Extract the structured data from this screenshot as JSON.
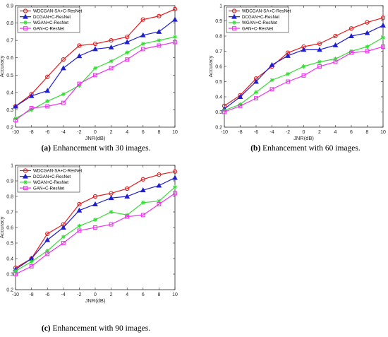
{
  "legend_order": [
    "WDCGAN-SA+C-ResNet",
    "DCGAN+C-ResNet",
    "WGAN+C-ResNet",
    "GAN+C-ResNet"
  ],
  "series_styles": [
    {
      "color": "#e41a1c",
      "marker": "circle"
    },
    {
      "color": "#1f1fd0",
      "marker": "triangle"
    },
    {
      "color": "#33dd33",
      "marker": "star"
    },
    {
      "color": "#ee33ee",
      "marker": "square"
    }
  ],
  "chart_data": [
    {
      "type": "line",
      "panel_letter": "(a)",
      "caption": "Enhancement with 30 images.",
      "xlabel": "JNR(dB)",
      "ylabel": "Accuracy",
      "x": [
        -10,
        -8,
        -6,
        -4,
        -2,
        0,
        2,
        4,
        6,
        8,
        10
      ],
      "xlim": [
        -10,
        10
      ],
      "ylim": [
        0.2,
        0.9
      ],
      "x_ticks": [
        "-10",
        "-8",
        "-6",
        "-4",
        "-2",
        "0",
        "2",
        "4",
        "6",
        "8",
        "10"
      ],
      "y_ticks": [
        "0.2",
        "0.3",
        "0.4",
        "0.5",
        "0.6",
        "0.7",
        "0.8",
        "0.9"
      ],
      "grid": false,
      "legend_position": "top-left",
      "series": [
        {
          "name": "WDCGAN-SA+C-ResNet",
          "values": [
            0.32,
            0.39,
            0.49,
            0.59,
            0.67,
            0.68,
            0.7,
            0.72,
            0.82,
            0.84,
            0.88
          ]
        },
        {
          "name": "DCGAN+C-ResNet",
          "values": [
            0.32,
            0.38,
            0.41,
            0.54,
            0.61,
            0.65,
            0.66,
            0.69,
            0.73,
            0.75,
            0.82
          ]
        },
        {
          "name": "WGAN+C-ResNet",
          "values": [
            0.25,
            0.3,
            0.35,
            0.39,
            0.44,
            0.54,
            0.58,
            0.63,
            0.68,
            0.7,
            0.72
          ]
        },
        {
          "name": "GAN+C-ResNet",
          "values": [
            0.24,
            0.31,
            0.32,
            0.34,
            0.45,
            0.5,
            0.54,
            0.59,
            0.65,
            0.67,
            0.69
          ]
        }
      ]
    },
    {
      "type": "line",
      "panel_letter": "(b)",
      "caption": "Enhancement with 60 images.",
      "xlabel": "JNR(dB)",
      "ylabel": "Accuracy",
      "x": [
        -10,
        -8,
        -6,
        -4,
        -2,
        0,
        2,
        4,
        6,
        8,
        10
      ],
      "xlim": [
        -10,
        10
      ],
      "ylim": [
        0.2,
        1.0
      ],
      "x_ticks": [
        "-10",
        "-8",
        "-6",
        "-4",
        "-2",
        "0",
        "2",
        "4",
        "6",
        "8",
        "10"
      ],
      "y_ticks": [
        "0.2",
        "0.3",
        "0.4",
        "0.5",
        "0.6",
        "0.7",
        "0.8",
        "0.9",
        "1"
      ],
      "grid": false,
      "legend_position": "top-left",
      "series": [
        {
          "name": "WDCGAN-SA+C-ResNet",
          "values": [
            0.34,
            0.41,
            0.52,
            0.6,
            0.69,
            0.73,
            0.75,
            0.8,
            0.85,
            0.89,
            0.92
          ]
        },
        {
          "name": "DCGAN+C-ResNet",
          "values": [
            0.32,
            0.4,
            0.5,
            0.61,
            0.67,
            0.71,
            0.71,
            0.74,
            0.8,
            0.82,
            0.87
          ]
        },
        {
          "name": "WGAN+C-ResNet",
          "values": [
            0.31,
            0.35,
            0.43,
            0.51,
            0.55,
            0.6,
            0.63,
            0.65,
            0.7,
            0.73,
            0.79
          ]
        },
        {
          "name": "GAN+C-ResNet",
          "values": [
            0.3,
            0.34,
            0.39,
            0.45,
            0.5,
            0.54,
            0.6,
            0.63,
            0.69,
            0.7,
            0.73
          ]
        }
      ]
    },
    {
      "type": "line",
      "panel_letter": "(c)",
      "caption": "Enhancement with 90 images.",
      "xlabel": "JNR(dB)",
      "ylabel": "Accuracy",
      "x": [
        -10,
        -8,
        -6,
        -4,
        -2,
        0,
        2,
        4,
        6,
        8,
        10
      ],
      "xlim": [
        -10,
        10
      ],
      "ylim": [
        0.2,
        1.0
      ],
      "x_ticks": [
        "-10",
        "-8",
        "-6",
        "-4",
        "-2",
        "0",
        "2",
        "4",
        "6",
        "8",
        "10"
      ],
      "y_ticks": [
        "0.2",
        "0.3",
        "0.4",
        "0.5",
        "0.6",
        "0.7",
        "0.8",
        "0.9",
        "1"
      ],
      "grid": false,
      "legend_position": "top-left",
      "series": [
        {
          "name": "WDCGAN-SA+C-ResNet",
          "values": [
            0.34,
            0.4,
            0.56,
            0.62,
            0.75,
            0.8,
            0.82,
            0.85,
            0.91,
            0.94,
            0.96
          ]
        },
        {
          "name": "DCGAN+C-ResNet",
          "values": [
            0.33,
            0.4,
            0.52,
            0.6,
            0.71,
            0.75,
            0.79,
            0.8,
            0.84,
            0.87,
            0.92
          ]
        },
        {
          "name": "WGAN+C-ResNet",
          "values": [
            0.32,
            0.38,
            0.45,
            0.54,
            0.61,
            0.65,
            0.7,
            0.68,
            0.76,
            0.77,
            0.86
          ]
        },
        {
          "name": "GAN+C-ResNet",
          "values": [
            0.3,
            0.35,
            0.43,
            0.5,
            0.58,
            0.6,
            0.62,
            0.67,
            0.68,
            0.75,
            0.82
          ]
        }
      ]
    }
  ]
}
